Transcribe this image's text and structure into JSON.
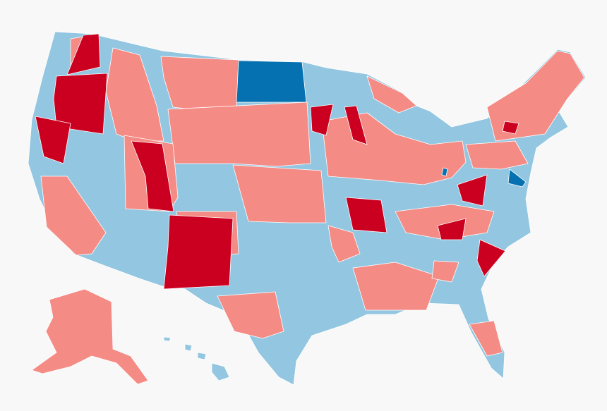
{
  "map": {
    "palette": {
      "safe_red": "#cb0020",
      "lean_red": "#f48b85",
      "lean_blue": "#93c6e0",
      "safe_blue": "#0571b0"
    },
    "background": "#f8f8f8",
    "border": "#ffffff"
  }
}
